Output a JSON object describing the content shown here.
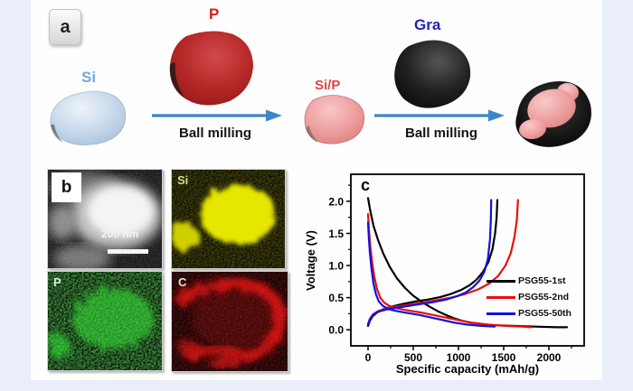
{
  "page": {
    "background": "#e9eefa",
    "panel_bg": "#fefefe"
  },
  "panel_a": {
    "label": "a",
    "si_label": "Si",
    "p_label": "P",
    "sip_label": "Si/P",
    "gra_label": "Gra",
    "arrow1_label": "Ball milling",
    "arrow2_label": "Ball milling",
    "colors": {
      "si_text": "#6fa8dc",
      "p_text": "#dd1c1c",
      "sip_text": "#e04444",
      "gra_text": "#2222bb",
      "arrow": "#3b86c9",
      "si_blob": "#c3d6ea",
      "p_blob": "#b22222",
      "sip_blob": "#efa0a0",
      "gra_blob": "#151515"
    }
  },
  "panel_b": {
    "label": "b",
    "scale_bar_text": "200 nm",
    "maps": [
      {
        "element": "Si",
        "color": "#e6e600"
      },
      {
        "element": "P",
        "color": "#22bb22"
      },
      {
        "element": "C",
        "color": "#dd1111"
      }
    ]
  },
  "panel_c": {
    "label": "c"
  },
  "chart_data": {
    "type": "line",
    "title": "",
    "xlabel": "Specific capacity (mAh/g)",
    "ylabel": "Voltage (V)",
    "xlim": [
      -190,
      2390
    ],
    "ylim": [
      -0.25,
      2.42
    ],
    "xticks": [
      "0",
      "500",
      "1000",
      "1500",
      "2000"
    ],
    "yticks": [
      "0.0",
      "0.5",
      "1.0",
      "1.5",
      "2.0"
    ],
    "x_minor_step": 250,
    "y_minor_step": 0.25,
    "grid": false,
    "legend_position": "right-middle",
    "series": [
      {
        "name": "PSG55-1st",
        "color": "#000000",
        "discharge": [
          [
            0,
            2.05
          ],
          [
            25,
            1.85
          ],
          [
            60,
            1.62
          ],
          [
            110,
            1.4
          ],
          [
            170,
            1.18
          ],
          [
            240,
            0.98
          ],
          [
            320,
            0.8
          ],
          [
            410,
            0.65
          ],
          [
            500,
            0.53
          ],
          [
            590,
            0.44
          ],
          [
            680,
            0.36
          ],
          [
            770,
            0.29
          ],
          [
            860,
            0.23
          ],
          [
            950,
            0.18
          ],
          [
            1040,
            0.14
          ],
          [
            1140,
            0.11
          ],
          [
            1260,
            0.09
          ],
          [
            1400,
            0.07
          ],
          [
            1600,
            0.06
          ],
          [
            1850,
            0.05
          ],
          [
            2080,
            0.04
          ],
          [
            2200,
            0.04
          ]
        ],
        "charge": [
          [
            0,
            0.06
          ],
          [
            20,
            0.14
          ],
          [
            50,
            0.21
          ],
          [
            100,
            0.27
          ],
          [
            170,
            0.32
          ],
          [
            260,
            0.36
          ],
          [
            380,
            0.4
          ],
          [
            520,
            0.44
          ],
          [
            660,
            0.47
          ],
          [
            800,
            0.51
          ],
          [
            920,
            0.56
          ],
          [
            1030,
            0.62
          ],
          [
            1120,
            0.69
          ],
          [
            1200,
            0.78
          ],
          [
            1270,
            0.9
          ],
          [
            1330,
            1.05
          ],
          [
            1375,
            1.25
          ],
          [
            1405,
            1.5
          ],
          [
            1422,
            1.75
          ],
          [
            1430,
            2.02
          ]
        ]
      },
      {
        "name": "PSG55-2nd",
        "color": "#e80e0e",
        "discharge": [
          [
            0,
            1.8
          ],
          [
            10,
            1.55
          ],
          [
            25,
            1.3
          ],
          [
            45,
            1.05
          ],
          [
            70,
            0.82
          ],
          [
            100,
            0.63
          ],
          [
            135,
            0.5
          ],
          [
            180,
            0.42
          ],
          [
            240,
            0.37
          ],
          [
            330,
            0.33
          ],
          [
            450,
            0.3
          ],
          [
            580,
            0.27
          ],
          [
            720,
            0.23
          ],
          [
            860,
            0.19
          ],
          [
            1000,
            0.15
          ],
          [
            1150,
            0.11
          ],
          [
            1320,
            0.08
          ],
          [
            1520,
            0.06
          ],
          [
            1700,
            0.05
          ],
          [
            1800,
            0.04
          ]
        ],
        "charge": [
          [
            0,
            0.09
          ],
          [
            20,
            0.17
          ],
          [
            55,
            0.24
          ],
          [
            110,
            0.29
          ],
          [
            190,
            0.33
          ],
          [
            300,
            0.36
          ],
          [
            440,
            0.39
          ],
          [
            600,
            0.42
          ],
          [
            760,
            0.46
          ],
          [
            920,
            0.5
          ],
          [
            1080,
            0.56
          ],
          [
            1220,
            0.63
          ],
          [
            1340,
            0.72
          ],
          [
            1440,
            0.84
          ],
          [
            1520,
            1.0
          ],
          [
            1580,
            1.2
          ],
          [
            1620,
            1.45
          ],
          [
            1645,
            1.7
          ],
          [
            1658,
            2.02
          ]
        ]
      },
      {
        "name": "PSG55-50th",
        "color": "#1212e0",
        "discharge": [
          [
            0,
            1.67
          ],
          [
            8,
            1.45
          ],
          [
            20,
            1.2
          ],
          [
            38,
            0.95
          ],
          [
            60,
            0.72
          ],
          [
            88,
            0.55
          ],
          [
            120,
            0.44
          ],
          [
            165,
            0.37
          ],
          [
            230,
            0.32
          ],
          [
            320,
            0.29
          ],
          [
            440,
            0.26
          ],
          [
            570,
            0.23
          ],
          [
            700,
            0.19
          ],
          [
            830,
            0.15
          ],
          [
            960,
            0.11
          ],
          [
            1100,
            0.08
          ],
          [
            1250,
            0.06
          ],
          [
            1400,
            0.05
          ]
        ],
        "charge": [
          [
            0,
            0.08
          ],
          [
            20,
            0.16
          ],
          [
            55,
            0.23
          ],
          [
            110,
            0.28
          ],
          [
            190,
            0.31
          ],
          [
            300,
            0.34
          ],
          [
            440,
            0.37
          ],
          [
            580,
            0.4
          ],
          [
            720,
            0.43
          ],
          [
            860,
            0.47
          ],
          [
            980,
            0.52
          ],
          [
            1080,
            0.58
          ],
          [
            1160,
            0.66
          ],
          [
            1230,
            0.76
          ],
          [
            1285,
            0.9
          ],
          [
            1325,
            1.1
          ],
          [
            1348,
            1.4
          ],
          [
            1358,
            1.7
          ],
          [
            1362,
            2.02
          ]
        ]
      }
    ]
  }
}
